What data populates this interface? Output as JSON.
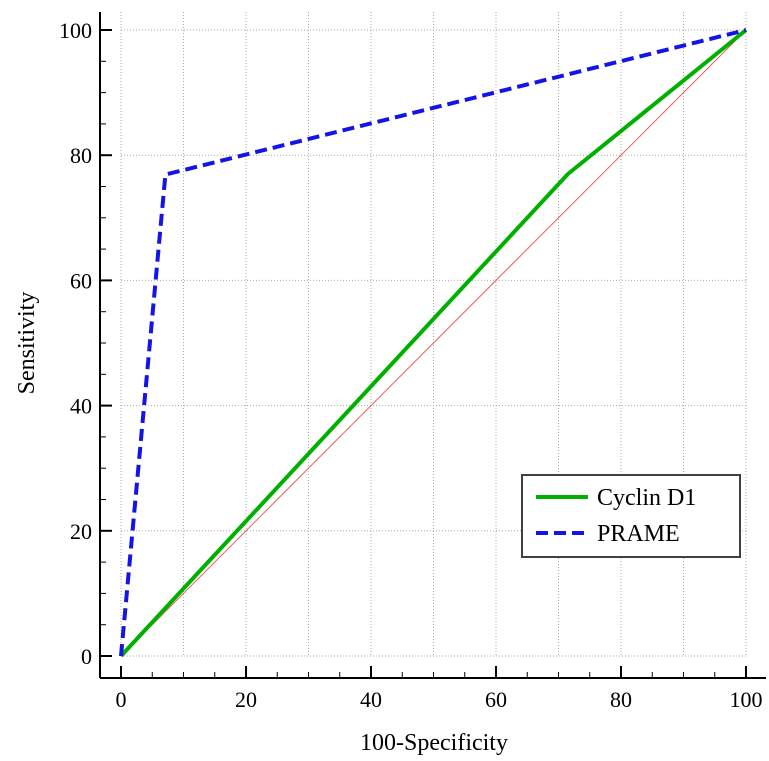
{
  "chart_data": {
    "type": "line",
    "title": "",
    "xlabel": "100-Specificity",
    "ylabel": "Sensitivity",
    "xlim": [
      0,
      100
    ],
    "ylim": [
      0,
      100
    ],
    "xticks": [
      "0",
      "20",
      "40",
      "60",
      "80",
      "100"
    ],
    "yticks": [
      "0",
      "20",
      "40",
      "60",
      "80",
      "100"
    ],
    "grid": true,
    "legend_position": "bottom-right",
    "reference_line": {
      "x": [
        0,
        100
      ],
      "y": [
        0,
        100
      ],
      "color": "#e06060"
    },
    "series": [
      {
        "name": "Cyclin D1",
        "color": "#00b000",
        "style": "solid",
        "x": [
          0,
          71.5,
          100
        ],
        "y": [
          0,
          77,
          100
        ]
      },
      {
        "name": "PRAME",
        "color": "#1414e6",
        "style": "dashed",
        "x": [
          0,
          7.1,
          100
        ],
        "y": [
          0,
          76.9,
          100
        ]
      }
    ]
  }
}
